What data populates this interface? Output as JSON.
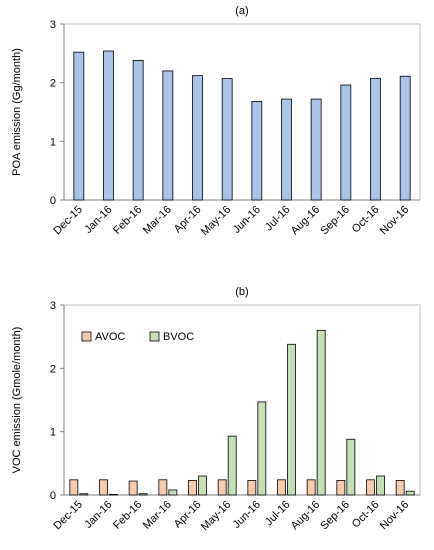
{
  "chart_data": [
    {
      "type": "bar",
      "title": "(a)",
      "ylabel": "POA emission (Gg/month)",
      "xlabel": "",
      "ylim": [
        0,
        3
      ],
      "yticks": [
        "0",
        "1",
        "2",
        "3"
      ],
      "categories": [
        "Dec-15",
        "Jan-16",
        "Feb-16",
        "Mar-16",
        "Apr-16",
        "May-16",
        "Jun-16",
        "Jul-16",
        "Aug-16",
        "Sep-16",
        "Oct-16",
        "Nov-16"
      ],
      "series": [
        {
          "values": [
            2.52,
            2.54,
            2.38,
            2.2,
            2.12,
            2.07,
            1.68,
            1.72,
            1.72,
            1.96,
            2.07,
            2.11
          ],
          "color": "#a9c4eb"
        }
      ]
    },
    {
      "type": "bar",
      "title": "(b)",
      "ylabel": "VOC emission (Gmole/month)",
      "xlabel": "",
      "ylim": [
        0,
        3
      ],
      "yticks": [
        "0",
        "1",
        "2",
        "3"
      ],
      "legend": "top-left",
      "categories": [
        "Dec-15",
        "Jan-16",
        "Feb-16",
        "Mar-16",
        "Apr-16",
        "May-16",
        "Jun-16",
        "Jul-16",
        "Aug-16",
        "Sep-16",
        "Oct-16",
        "Nov-16"
      ],
      "series": [
        {
          "name": "AVOC",
          "values": [
            0.24,
            0.24,
            0.22,
            0.24,
            0.23,
            0.24,
            0.23,
            0.24,
            0.24,
            0.23,
            0.24,
            0.23
          ],
          "color": "#f8cbad"
        },
        {
          "name": "BVOC",
          "values": [
            0.02,
            0.01,
            0.02,
            0.08,
            0.3,
            0.93,
            1.47,
            2.38,
            2.6,
            0.88,
            0.3,
            0.06
          ],
          "color": "#c5e0b4"
        }
      ]
    }
  ]
}
